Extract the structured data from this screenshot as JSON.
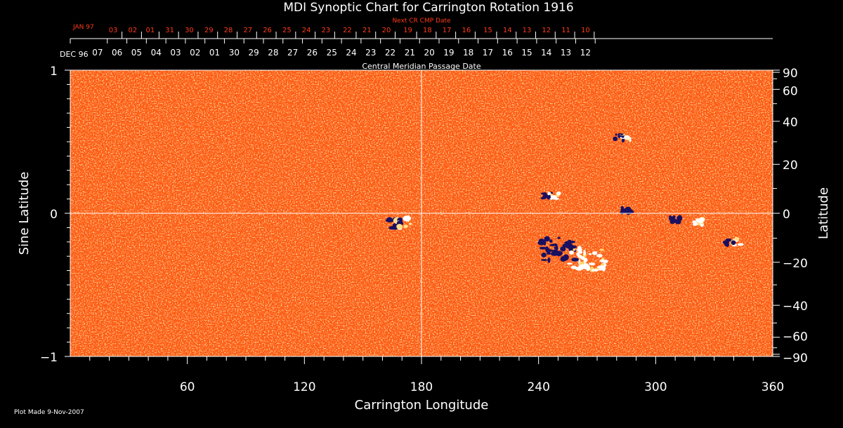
{
  "chart_data": {
    "type": "heatmap",
    "title": "MDI Synoptic Chart for Carrington Rotation 1916",
    "xlabel": "Carrington Longitude",
    "ylabel_left": "Sine Latitude",
    "ylabel_right": "Latitude",
    "xlim": [
      0,
      360
    ],
    "ylim_sine": [
      -1,
      1
    ],
    "x_ticks": [
      "60",
      "120",
      "180",
      "240",
      "300",
      "360"
    ],
    "y_left_ticks": [
      "1",
      "0",
      "−1"
    ],
    "y_right_ticks": [
      "90",
      "60",
      "40",
      "20",
      "0",
      "−20",
      "−40",
      "−60",
      "−90"
    ],
    "y_right_tick_values": [
      90,
      60,
      40,
      20,
      0,
      -20,
      -40,
      -60,
      -90
    ],
    "top_axis_label": "Central Meridian Passage Date",
    "top_axis_start_label": "DEC 96",
    "top_axis_dates": [
      "07",
      "06",
      "05",
      "04",
      "03",
      "02",
      "01",
      "30",
      "29",
      "28",
      "27",
      "26",
      "25",
      "24",
      "23",
      "22",
      "21",
      "20",
      "19",
      "18",
      "17",
      "16",
      "15",
      "14",
      "13",
      "12"
    ],
    "top_axis_dates_x": [
      14,
      24,
      34,
      44,
      54,
      64,
      74,
      84,
      94,
      104,
      114,
      124,
      134,
      144,
      154,
      164,
      174,
      184,
      194,
      204,
      214,
      224,
      234,
      244,
      254,
      264
    ],
    "next_cr_label": "Next CR CMP Date",
    "next_cr_start_label": "JAN 97",
    "next_cr_dates": [
      "03",
      "02",
      "01",
      "31",
      "30",
      "29",
      "28",
      "27",
      "26",
      "25",
      "24",
      "23",
      "22",
      "21",
      "20",
      "19",
      "18",
      "17",
      "16",
      "15",
      "14",
      "13",
      "12",
      "11",
      "10"
    ],
    "next_cr_dates_x": [
      22,
      32,
      41,
      51,
      61,
      71,
      81,
      91,
      101,
      111,
      121,
      131,
      142,
      152,
      162,
      173,
      183,
      193,
      203,
      214,
      224,
      234,
      244,
      254,
      264
    ],
    "regions": [
      {
        "lon": 168,
        "sinlat": -0.07,
        "polarity": "mixed"
      },
      {
        "lon": 246,
        "sinlat": 0.12,
        "polarity": "mixed"
      },
      {
        "lon": 283,
        "sinlat": 0.53,
        "polarity": "mixed"
      },
      {
        "lon": 285,
        "sinlat": 0.02,
        "polarity": "negative"
      },
      {
        "lon": 340,
        "sinlat": -0.2,
        "polarity": "mixed"
      },
      {
        "lon": 310,
        "sinlat": -0.04,
        "polarity": "negative"
      },
      {
        "lon": 322,
        "sinlat": -0.06,
        "polarity": "positive"
      },
      {
        "lon": 250,
        "sinlat": -0.25,
        "polarity": "negative"
      },
      {
        "lon": 265,
        "sinlat": -0.32,
        "polarity": "positive"
      }
    ],
    "colors": {
      "background": "#ff5a0f",
      "positive": "#ffffff",
      "negative": "#1a1060",
      "axis": "#ffffff",
      "secondary_text": "#ff3b1a"
    },
    "grid": "center lines at longitude 180 and latitude 0"
  },
  "footer": {
    "plot_made": "Plot Made  9-Nov-2007"
  }
}
